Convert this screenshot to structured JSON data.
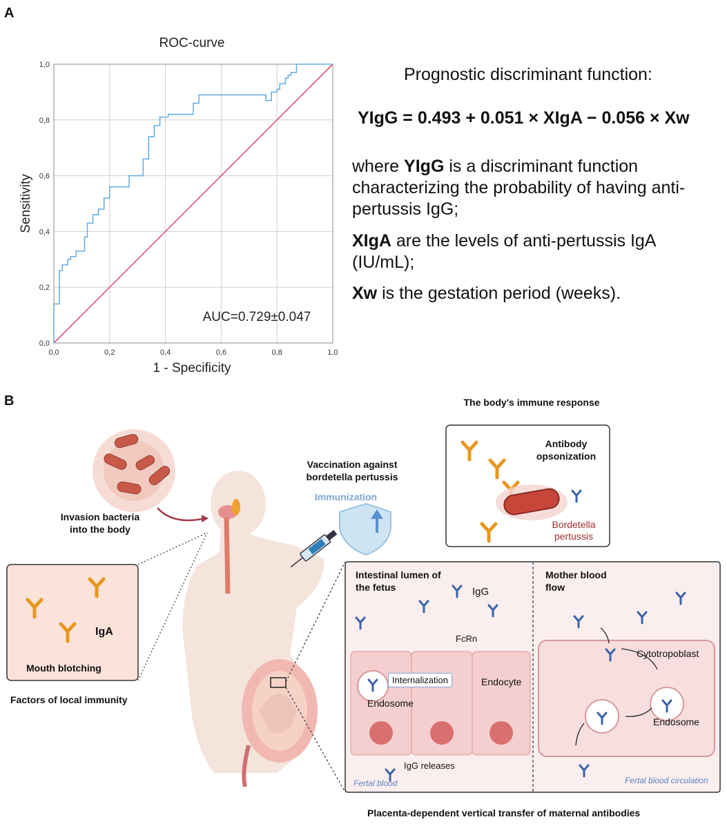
{
  "panel_a_label": "A",
  "panel_b_label": "B",
  "chart_data": {
    "type": "line",
    "title": "ROC-curve",
    "xlabel": "1 - Specificity",
    "ylabel": "Sensitivity",
    "xlim": [
      0,
      1
    ],
    "ylim": [
      0,
      1
    ],
    "xticks": [
      "0,0",
      "0,2",
      "0,4",
      "0,6",
      "0,8",
      "1,0"
    ],
    "yticks": [
      "0,0",
      "0,2",
      "0,4",
      "0,6",
      "0,8",
      "1,0"
    ],
    "grid": true,
    "annotation": "AUC=0.729±0.047",
    "series": [
      {
        "name": "ROC",
        "color": "#6aaee0",
        "x": [
          0,
          0,
          0.02,
          0.02,
          0.03,
          0.03,
          0.05,
          0.05,
          0.06,
          0.06,
          0.08,
          0.08,
          0.11,
          0.11,
          0.12,
          0.12,
          0.14,
          0.14,
          0.16,
          0.16,
          0.18,
          0.18,
          0.2,
          0.2,
          0.27,
          0.27,
          0.32,
          0.32,
          0.34,
          0.34,
          0.36,
          0.36,
          0.38,
          0.38,
          0.41,
          0.41,
          0.5,
          0.5,
          0.52,
          0.52,
          0.76,
          0.76,
          0.78,
          0.78,
          0.8,
          0.8,
          0.81,
          0.81,
          0.83,
          0.83,
          0.84,
          0.84,
          0.85,
          0.85,
          0.87,
          0.87,
          1
        ],
        "y": [
          0,
          0.14,
          0.14,
          0.26,
          0.26,
          0.28,
          0.28,
          0.3,
          0.3,
          0.31,
          0.31,
          0.33,
          0.33,
          0.38,
          0.38,
          0.43,
          0.43,
          0.46,
          0.46,
          0.48,
          0.48,
          0.52,
          0.52,
          0.56,
          0.56,
          0.6,
          0.6,
          0.66,
          0.66,
          0.74,
          0.74,
          0.78,
          0.78,
          0.81,
          0.81,
          0.82,
          0.82,
          0.86,
          0.86,
          0.89,
          0.89,
          0.87,
          0.87,
          0.9,
          0.9,
          0.91,
          0.91,
          0.93,
          0.93,
          0.95,
          0.95,
          0.96,
          0.96,
          0.97,
          0.97,
          1,
          1
        ]
      },
      {
        "name": "Reference",
        "color": "#e05575",
        "x": [
          0,
          1
        ],
        "y": [
          0,
          1
        ]
      }
    ]
  },
  "equation": {
    "title": "Prognostic discriminant function:",
    "formula": "YIgG = 0.493 + 0.051 × XIgA − 0.056 × Xw",
    "p1_bold": "YIgG",
    "p1_rest": " is a discriminant function characterizing the probability of having anti-pertussis IgG;",
    "p1_where": "where ",
    "p2_bold": "XIgA",
    "p2_rest": " are the levels of anti-pertussis IgA (IU/mL);",
    "p3_bold": "Xw",
    "p3_rest": " is the gestation period (weeks)."
  },
  "diagram": {
    "immune_response_title": "The body's immune response",
    "invasion": "Invasion bacteria into the body",
    "vaccination": "Vaccination against bordetella pertussis",
    "immunization": "Immunization",
    "opsonization": "Antibody opsonization",
    "bordetella": "Bordetella pertussis",
    "iga": "IgA",
    "mouth_blotching": "Mouth blotching",
    "local_immunity": "Factors of local immunity",
    "intestinal_lumen": "Intestinal lumen of the fetus",
    "igg": "IgG",
    "fcrn": "FcRn",
    "internalization": "Internalization",
    "endocyte": "Endocyte",
    "endosome_left": "Endosome",
    "igg_releases": "IgG releases",
    "fertal_blood": "Fertal blood",
    "mother_blood_flow": "Mother blood flow",
    "cytotropoblast": "Cytotropoblast",
    "endosome_right": "Endosome",
    "fertal_circulation": "Fertal blood circulation",
    "placenta_transfer": "Placenta-dependent vertical transfer of maternal antibodies"
  }
}
